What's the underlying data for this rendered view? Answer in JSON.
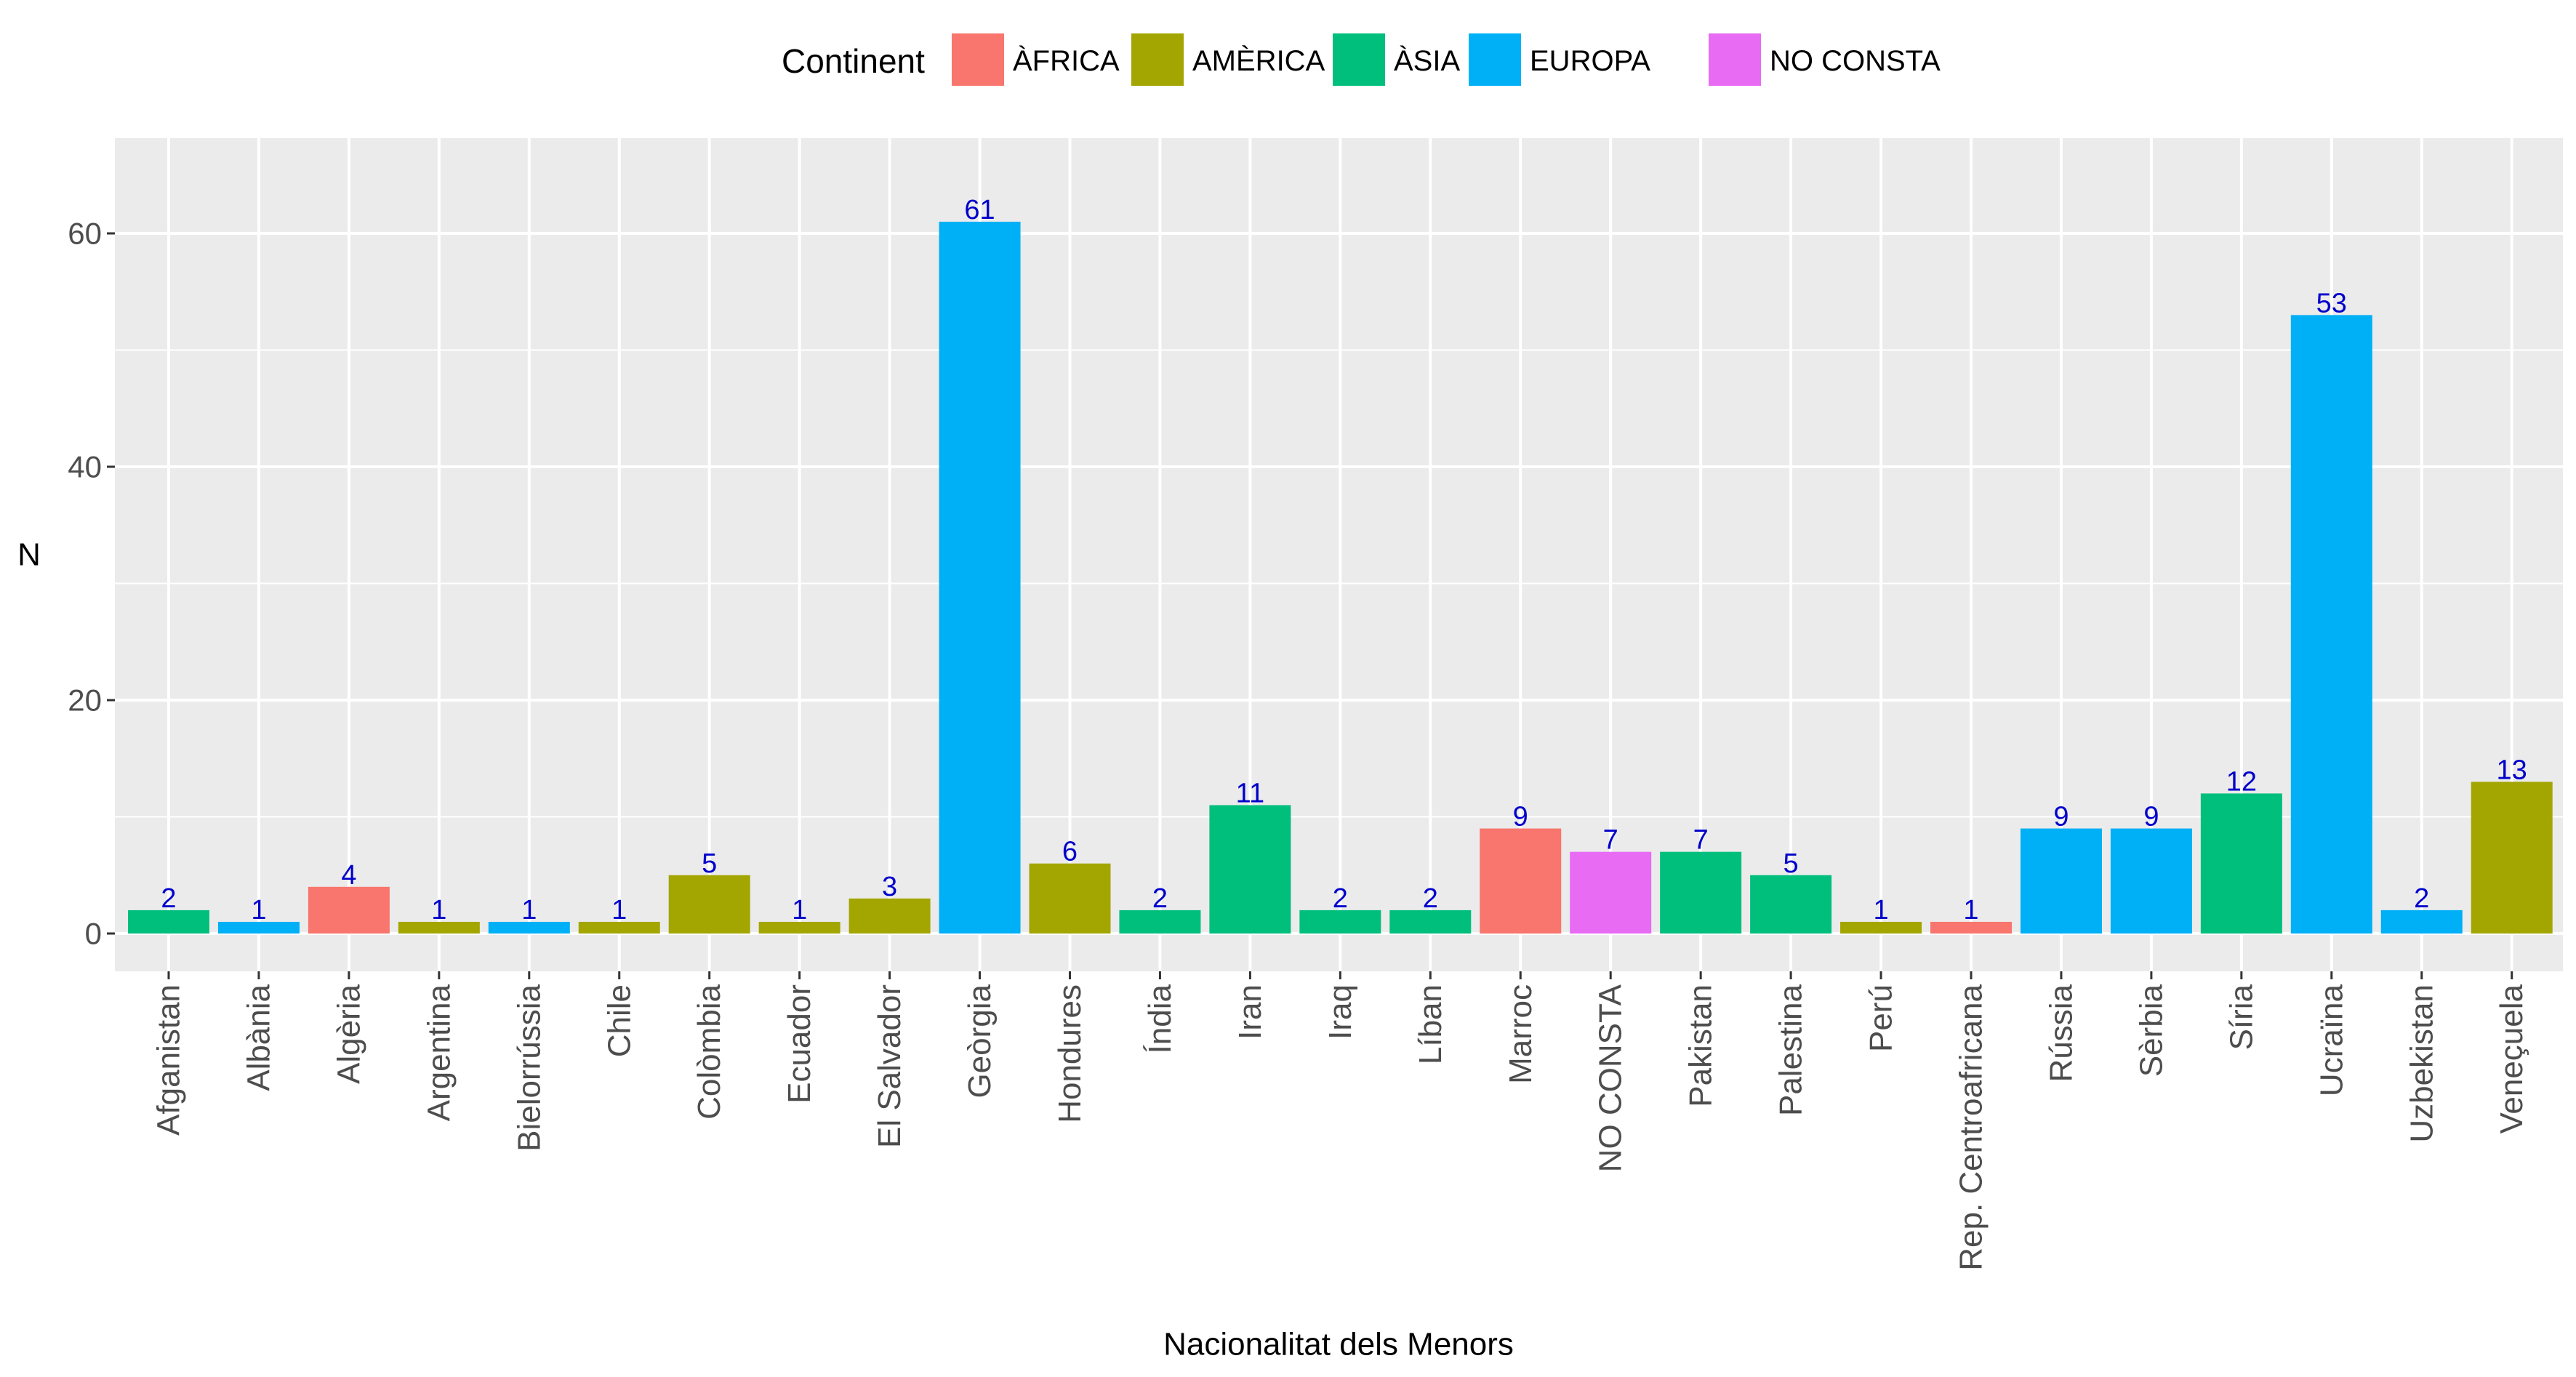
{
  "chart_data": {
    "type": "bar",
    "xlabel": "Nacionalitat dels Menors",
    "ylabel": "N",
    "ylim": [
      -3,
      68
    ],
    "yticks": [
      0,
      20,
      40,
      60
    ],
    "grid": true,
    "legend": {
      "title": "Continent",
      "placement": "top",
      "entries": [
        {
          "name": "ÀFRICA",
          "color": "#F8766D"
        },
        {
          "name": "AMÈRICA",
          "color": "#A3A500"
        },
        {
          "name": "ÀSIA",
          "color": "#00BF7D"
        },
        {
          "name": "EUROPA",
          "color": "#00B0F6"
        },
        {
          "name": "NO CONSTA",
          "color": "#E76BF3"
        }
      ]
    },
    "categories": [
      "Afganistan",
      "Albània",
      "Algèria",
      "Argentina",
      "Bielorrússia",
      "Chile",
      "Colòmbia",
      "Ecuador",
      "El Salvador",
      "Geòrgia",
      "Hondures",
      "Índia",
      "Iran",
      "Iraq",
      "Líban",
      "Marroc",
      "NO CONSTA",
      "Pakistan",
      "Palestina",
      "Perú",
      "Rep. Centroafricana",
      "Rússia",
      "Sèrbia",
      "Síria",
      "Ucraïna",
      "Uzbekistan",
      "Veneçuela"
    ],
    "values": [
      2,
      1,
      4,
      1,
      1,
      1,
      5,
      1,
      3,
      61,
      6,
      2,
      11,
      2,
      2,
      9,
      7,
      7,
      5,
      1,
      1,
      9,
      9,
      12,
      53,
      2,
      13
    ],
    "continent": [
      "ÀSIA",
      "EUROPA",
      "ÀFRICA",
      "AMÈRICA",
      "EUROPA",
      "AMÈRICA",
      "AMÈRICA",
      "AMÈRICA",
      "AMÈRICA",
      "EUROPA",
      "AMÈRICA",
      "ÀSIA",
      "ÀSIA",
      "ÀSIA",
      "ÀSIA",
      "ÀFRICA",
      "NO CONSTA",
      "ÀSIA",
      "ÀSIA",
      "AMÈRICA",
      "ÀFRICA",
      "EUROPA",
      "EUROPA",
      "ÀSIA",
      "EUROPA",
      "EUROPA",
      "AMÈRICA"
    ],
    "data_label_color": "#0000CC"
  }
}
